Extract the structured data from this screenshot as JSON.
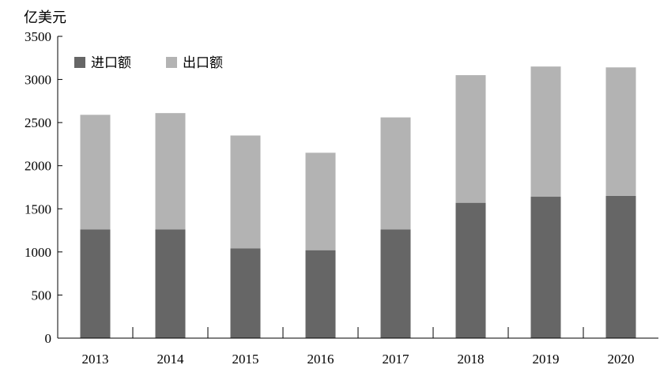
{
  "chart_data": {
    "type": "bar",
    "stacked": true,
    "ylabel": "亿美元",
    "xlabel": "",
    "ylim": [
      0,
      3500
    ],
    "yticks": [
      0,
      500,
      1000,
      1500,
      2000,
      2500,
      3000,
      3500
    ],
    "categories": [
      "2013",
      "2014",
      "2015",
      "2016",
      "2017",
      "2018",
      "2019",
      "2020"
    ],
    "series": [
      {
        "name": "进口额",
        "color": "#666666",
        "values": [
          1260,
          1260,
          1040,
          1020,
          1260,
          1570,
          1640,
          1650
        ]
      },
      {
        "name": "出口额",
        "color": "#b3b3b3",
        "values": [
          1330,
          1350,
          1310,
          1130,
          1300,
          1480,
          1510,
          1490
        ]
      }
    ],
    "legend_position": "top-left",
    "grid": false
  }
}
